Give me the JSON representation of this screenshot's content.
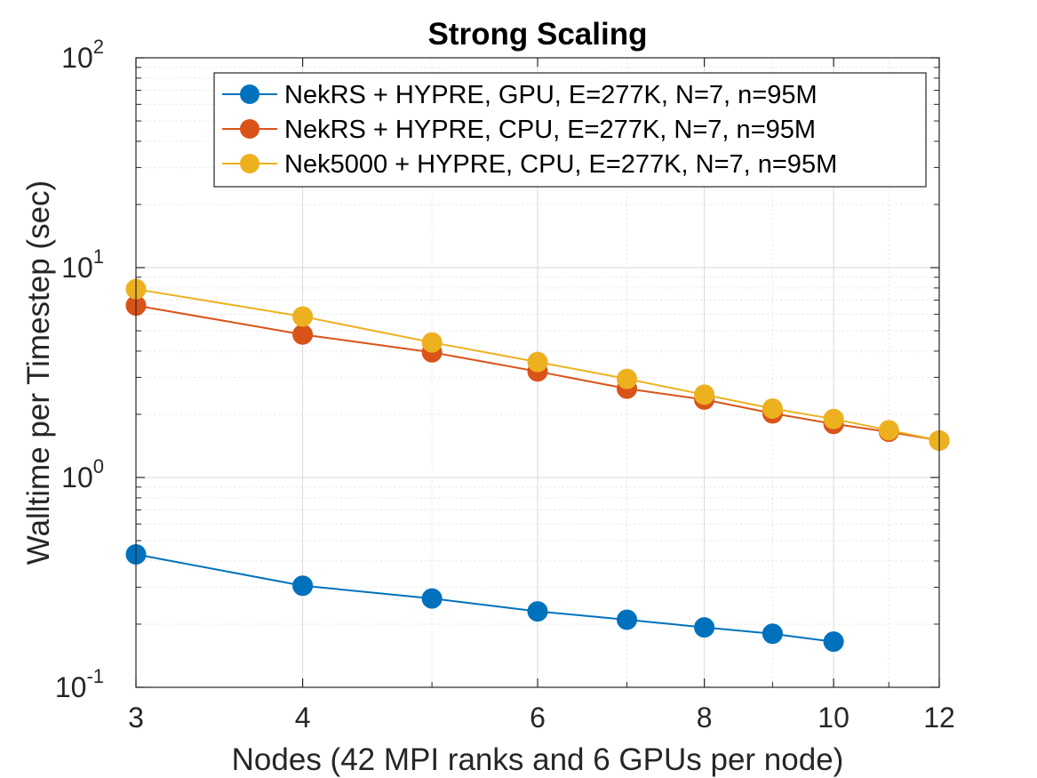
{
  "chart_data": {
    "type": "line",
    "title": "Strong Scaling",
    "xlabel": "Nodes (42 MPI ranks and 6 GPUs per node)",
    "ylabel": "Walltime per Timestep (sec)",
    "xscale": "log",
    "yscale": "log",
    "xlim": [
      3,
      12
    ],
    "ylim": [
      0.1,
      100
    ],
    "xticks": [
      3,
      4,
      6,
      8,
      10,
      12
    ],
    "yticks": [
      {
        "value": 0.1,
        "base": "10",
        "exp": "-1"
      },
      {
        "value": 1,
        "base": "10",
        "exp": "0"
      },
      {
        "value": 10,
        "base": "10",
        "exp": "1"
      },
      {
        "value": 100,
        "base": "10",
        "exp": "2"
      }
    ],
    "grid": true,
    "legend_position": "top-right",
    "series": [
      {
        "name": "NekRS + HYPRE, GPU, E=277K, N=7, n=95M",
        "color": "#0072BD",
        "x": [
          3,
          4,
          5,
          6,
          7,
          8,
          9,
          10
        ],
        "y": [
          0.43,
          0.305,
          0.265,
          0.23,
          0.21,
          0.193,
          0.18,
          0.165
        ]
      },
      {
        "name": "NekRS + HYPRE, CPU, E=277K, N=7, n=95M",
        "color": "#D95319",
        "x": [
          3,
          4,
          5,
          6,
          7,
          8,
          9,
          10,
          11,
          12
        ],
        "y": [
          6.6,
          4.8,
          3.95,
          3.2,
          2.65,
          2.35,
          2.02,
          1.8,
          1.65,
          1.5
        ]
      },
      {
        "name": "Nek5000 + HYPRE, CPU, E=277K, N=7, n=95M",
        "color": "#EDB120",
        "x": [
          3,
          4,
          5,
          6,
          7,
          8,
          9,
          10,
          11,
          12
        ],
        "y": [
          7.9,
          5.85,
          4.4,
          3.55,
          2.95,
          2.48,
          2.13,
          1.9,
          1.68,
          1.5
        ]
      }
    ]
  }
}
